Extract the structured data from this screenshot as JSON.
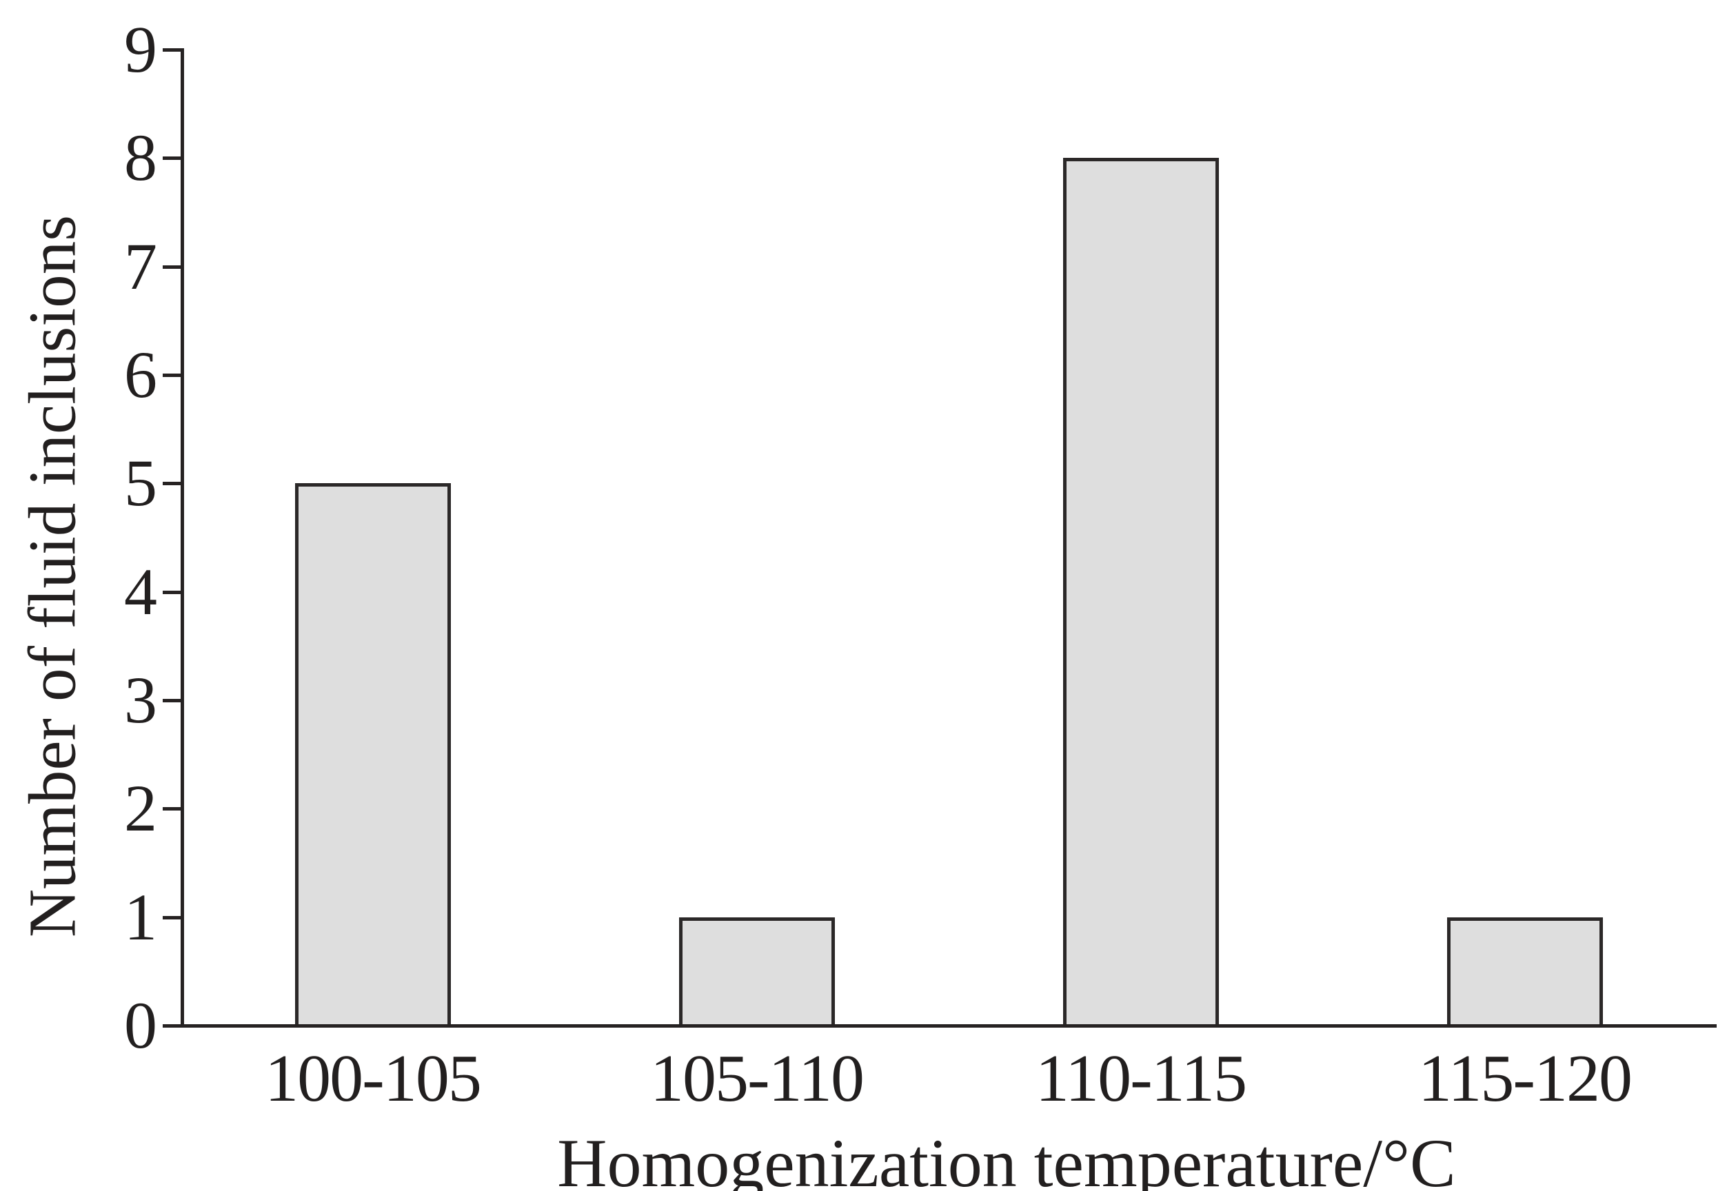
{
  "chart_data": {
    "type": "bar",
    "title": "",
    "categories": [
      "100-105",
      "105-110",
      "110-115",
      "115-120"
    ],
    "values": [
      5,
      1,
      8,
      1
    ],
    "xlabel": "Homogenization temperature/°C",
    "ylabel": "Number of fluid inclusions",
    "ylim": [
      0,
      9
    ],
    "yticks": [
      0,
      1,
      2,
      3,
      4,
      5,
      6,
      7,
      8,
      9
    ],
    "grid": false,
    "legend": false,
    "colors": {
      "bar_fill": "#dedede",
      "bar_border": "#2b2828",
      "axis": "#262222",
      "text": "#221f1f",
      "background": "#ffffff"
    }
  }
}
